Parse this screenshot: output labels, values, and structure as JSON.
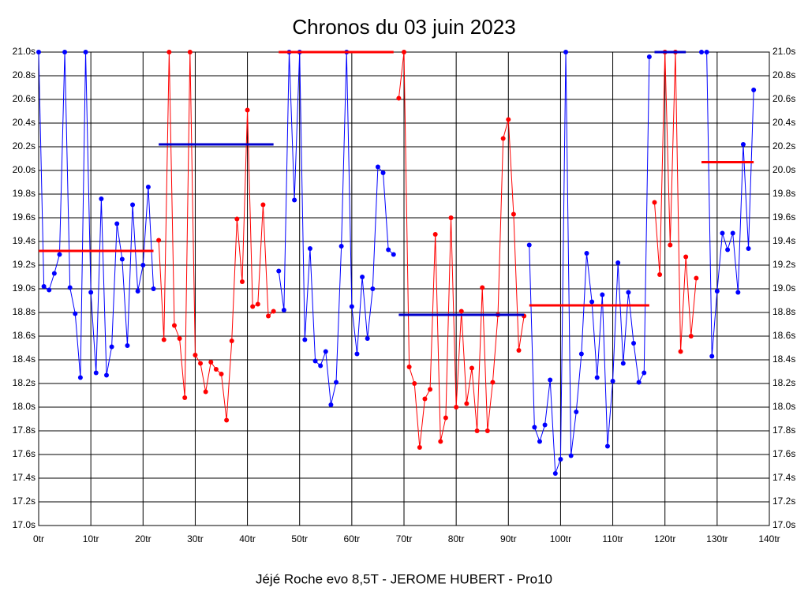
{
  "chart_data": {
    "type": "line",
    "title": "Chronos du 03 juin 2023",
    "x_label": "Jéjé Roche evo 8,5T - JEROME HUBERT - Pro10",
    "xlim": [
      0,
      140
    ],
    "ylim": [
      17.0,
      21.0
    ],
    "grid": true,
    "xticks": [
      {
        "value": 0,
        "label": "0tr"
      },
      {
        "value": 10,
        "label": "10tr"
      },
      {
        "value": 20,
        "label": "20tr"
      },
      {
        "value": 30,
        "label": "30tr"
      },
      {
        "value": 40,
        "label": "40tr"
      },
      {
        "value": 50,
        "label": "50tr"
      },
      {
        "value": 60,
        "label": "60tr"
      },
      {
        "value": 70,
        "label": "70tr"
      },
      {
        "value": 80,
        "label": "80tr"
      },
      {
        "value": 90,
        "label": "90tr"
      },
      {
        "value": 100,
        "label": "100tr"
      },
      {
        "value": 110,
        "label": "110tr"
      },
      {
        "value": 120,
        "label": "120tr"
      },
      {
        "value": 130,
        "label": "130tr"
      },
      {
        "value": 140,
        "label": "140tr"
      }
    ],
    "yticks": [
      {
        "value": 17.0,
        "label": "17.0s"
      },
      {
        "value": 17.2,
        "label": "17.2s"
      },
      {
        "value": 17.4,
        "label": "17.4s"
      },
      {
        "value": 17.6,
        "label": "17.6s"
      },
      {
        "value": 17.8,
        "label": "17.8s"
      },
      {
        "value": 18.0,
        "label": "18.0s"
      },
      {
        "value": 18.2,
        "label": "18.2s"
      },
      {
        "value": 18.4,
        "label": "18.4s"
      },
      {
        "value": 18.6,
        "label": "18.6s"
      },
      {
        "value": 18.8,
        "label": "18.8s"
      },
      {
        "value": 19.0,
        "label": "19.0s"
      },
      {
        "value": 19.2,
        "label": "19.2s"
      },
      {
        "value": 19.4,
        "label": "19.4s"
      },
      {
        "value": 19.6,
        "label": "19.6s"
      },
      {
        "value": 19.8,
        "label": "19.8s"
      },
      {
        "value": 20.0,
        "label": "20.0s"
      },
      {
        "value": 20.2,
        "label": "20.2s"
      },
      {
        "value": 20.4,
        "label": "20.4s"
      },
      {
        "value": 20.6,
        "label": "20.6s"
      },
      {
        "value": 20.8,
        "label": "20.8s"
      },
      {
        "value": 21.0,
        "label": "21.0s"
      }
    ],
    "series": [
      {
        "color": "#0000ff",
        "markers": true,
        "x": [
          0,
          1,
          2,
          3,
          4,
          5,
          6,
          7,
          8,
          9,
          10,
          11,
          12,
          13,
          14,
          15,
          16,
          17,
          18,
          19,
          20,
          21,
          22
        ],
        "values": [
          21.0,
          19.02,
          18.99,
          19.13,
          19.29,
          21.0,
          19.01,
          18.79,
          18.25,
          21.0,
          18.97,
          18.29,
          19.76,
          18.27,
          18.51,
          19.55,
          19.25,
          18.52,
          19.71,
          18.98,
          19.2,
          19.86,
          19.0
        ]
      },
      {
        "color": "#ff0000",
        "markers": true,
        "x": [
          23,
          24,
          25,
          26,
          27,
          28,
          29,
          30,
          31,
          32,
          33,
          34,
          35,
          36,
          37,
          38,
          39,
          40,
          41,
          42,
          43,
          44,
          45
        ],
        "values": [
          19.41,
          18.57,
          21.0,
          18.69,
          18.58,
          18.08,
          21.0,
          18.44,
          18.37,
          18.13,
          18.38,
          18.32,
          18.28,
          17.89,
          18.56,
          19.59,
          19.06,
          20.51,
          18.85,
          18.87,
          19.71,
          18.77,
          18.81
        ]
      },
      {
        "color": "#0000ff",
        "markers": true,
        "x": [
          46,
          47,
          48,
          49,
          50,
          51,
          52,
          53,
          54,
          55,
          56,
          57,
          58,
          59,
          60,
          61,
          62,
          63,
          64,
          65,
          66,
          67,
          68
        ],
        "values": [
          19.15,
          18.82,
          21.0,
          19.75,
          21.0,
          18.57,
          19.34,
          18.39,
          18.35,
          18.47,
          18.02,
          18.21,
          19.36,
          21.0,
          18.85,
          18.45,
          19.1,
          18.58,
          19.0,
          20.03,
          19.98,
          19.33,
          19.29
        ]
      },
      {
        "color": "#ff0000",
        "markers": true,
        "x": [
          69,
          70,
          71,
          72,
          73,
          74,
          75,
          76,
          77,
          78,
          79,
          80,
          81,
          82,
          83,
          84,
          85,
          86,
          87,
          88,
          89,
          90,
          91,
          92,
          93
        ],
        "values": [
          20.61,
          21.0,
          18.34,
          18.2,
          17.66,
          18.07,
          18.15,
          19.46,
          17.71,
          17.91,
          19.6,
          18.0,
          18.81,
          18.03,
          18.33,
          17.8,
          19.01,
          17.8,
          18.21,
          18.78,
          20.27,
          20.43,
          19.63,
          18.48,
          18.77
        ]
      },
      {
        "color": "#0000ff",
        "markers": true,
        "x": [
          94,
          95,
          96,
          97,
          98,
          99,
          100,
          101,
          102,
          103,
          104,
          105,
          106,
          107,
          108,
          109,
          110,
          111,
          112,
          113,
          114,
          115,
          116,
          117
        ],
        "values": [
          19.37,
          17.83,
          17.71,
          17.85,
          18.23,
          17.44,
          17.56,
          21.0,
          17.59,
          17.96,
          18.45,
          19.3,
          18.89,
          18.25,
          18.95,
          17.67,
          18.22,
          19.22,
          18.37,
          18.97,
          18.54,
          18.21,
          18.29,
          20.96
        ]
      },
      {
        "color": "#ff0000",
        "markers": true,
        "x": [
          118,
          119,
          120,
          121,
          122,
          123,
          124,
          125,
          126
        ],
        "values": [
          19.73,
          19.12,
          21.0,
          19.37,
          21.0,
          18.47,
          19.27,
          18.6,
          19.09
        ]
      },
      {
        "color": "#0000ff",
        "markers": true,
        "x": [
          127,
          128,
          129,
          130,
          131,
          132,
          133,
          134,
          135,
          136,
          137
        ],
        "values": [
          21.0,
          21.0,
          18.43,
          18.98,
          19.47,
          19.33,
          19.47,
          18.97,
          20.22,
          19.34,
          20.68
        ]
      },
      {
        "color": "#ff0000",
        "markers": false,
        "x": [
          0,
          22
        ],
        "values": [
          19.32,
          19.32
        ]
      },
      {
        "color": "#0000cc",
        "markers": false,
        "x": [
          23,
          45
        ],
        "values": [
          20.22,
          20.22
        ]
      },
      {
        "color": "#ff0000",
        "markers": false,
        "x": [
          46,
          68
        ],
        "values": [
          21.0,
          21.0
        ]
      },
      {
        "color": "#0000cc",
        "markers": false,
        "x": [
          69,
          93
        ],
        "values": [
          18.78,
          18.78
        ]
      },
      {
        "color": "#ff0000",
        "markers": false,
        "x": [
          94,
          117
        ],
        "values": [
          18.86,
          18.86
        ]
      },
      {
        "color": "#0000cc",
        "markers": false,
        "x": [
          118,
          124
        ],
        "values": [
          21.0,
          21.0
        ]
      },
      {
        "color": "#ff0000",
        "markers": false,
        "x": [
          127,
          137
        ],
        "values": [
          20.07,
          20.07
        ]
      }
    ]
  }
}
